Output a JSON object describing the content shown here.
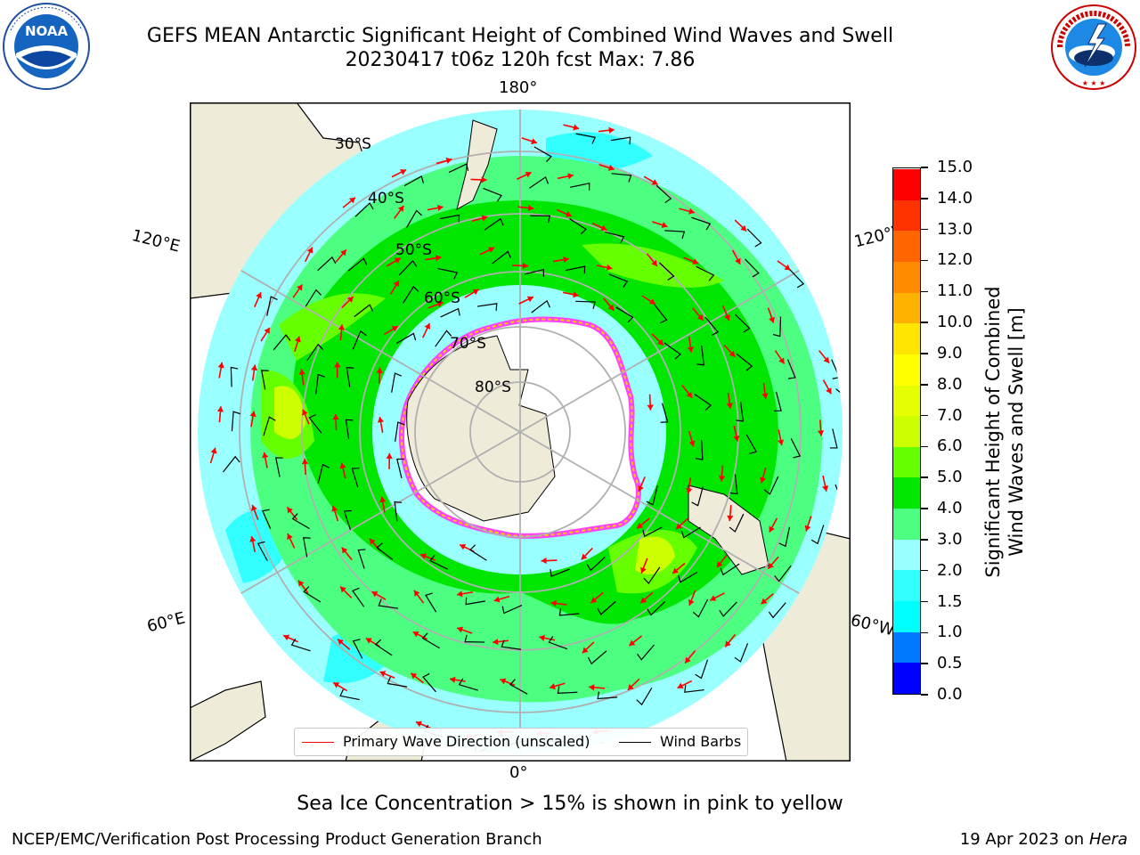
{
  "title": {
    "line1": "GEFS MEAN Antarctic Significant Height of Combined Wind Waves and Swell",
    "line2": "20230417 t06z 120h fcst   Max: 7.86"
  },
  "longitude_labels": {
    "top": "180°",
    "bottom": "0°",
    "upper_left": "120°E",
    "lower_left": "60°E",
    "upper_right": "120°W",
    "lower_right": "60°W"
  },
  "latitude_labels": [
    "30°S",
    "40°S",
    "50°S",
    "60°S",
    "70°S",
    "80°S"
  ],
  "colorbar": {
    "ticks": [
      "0.0",
      "0.5",
      "1.0",
      "1.5",
      "2.0",
      "3.0",
      "4.0",
      "5.0",
      "6.0",
      "7.0",
      "8.0",
      "9.0",
      "10.0",
      "11.0",
      "12.0",
      "13.0",
      "14.0",
      "15.0"
    ],
    "colors": [
      "#0000ff",
      "#0078ff",
      "#00ffff",
      "#32ffff",
      "#99ffff",
      "#4dff80",
      "#00e600",
      "#66ff00",
      "#ccff00",
      "#e6ff00",
      "#ffff00",
      "#ffe600",
      "#ffb300",
      "#ff8c00",
      "#ff6600",
      "#ff3300",
      "#ff0000"
    ],
    "title_line1": "Significant Height of Combined",
    "title_line2": "Wind Waves and Swell [m]"
  },
  "legend": {
    "primary_wave": "Primary Wave Direction (unscaled)",
    "wind_barbs": "Wind Barbs",
    "primary_wave_color": "#ff0000",
    "wind_barbs_color": "#000000"
  },
  "caption": "Sea Ice Concentration > 15% is shown in pink to yellow",
  "footer": {
    "left": "NCEP/EMC/Verification Post Processing Product Generation Branch",
    "date": "19 Apr 2023 on",
    "host": "Hera"
  },
  "logos": {
    "noaa_text": "NOAA",
    "nws_text": "NATIONAL WEATHER SERVICE"
  },
  "map_colors": {
    "land": "#efebd9",
    "ocean_calm": "#99ffff",
    "ocean_moderate": "#4dff80",
    "ocean_rough": "#00e600",
    "ice_edge": "#ff40ff",
    "ice_inner": "#ffcc00"
  }
}
